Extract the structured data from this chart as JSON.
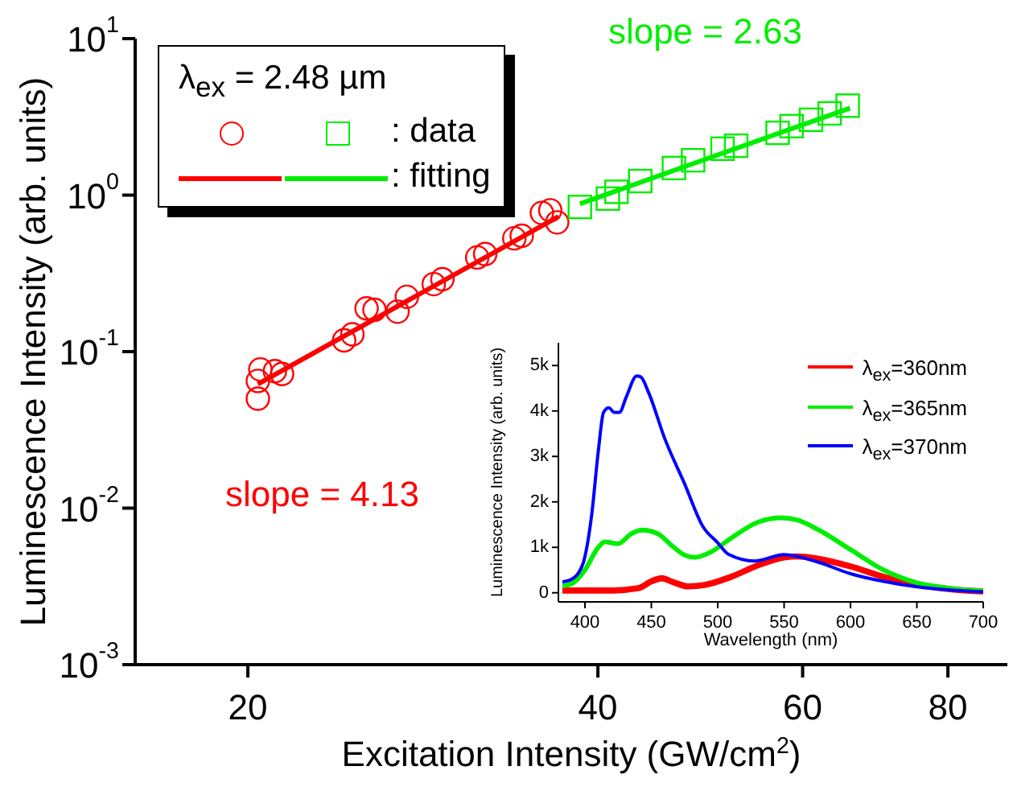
{
  "chart_data": [
    {
      "type": "scatter",
      "xlabel": "Excitation Intensity (GW/cm$^{2}$)",
      "ylabel": "Luminescence Intensity (arb. units)",
      "log": "xy",
      "xlim": [
        16,
        90
      ],
      "xticks": [
        20,
        40,
        60,
        80
      ],
      "ylim": [
        0.001,
        10
      ],
      "yticks": [
        {
          "value": 0.001,
          "label": "10$^{-3}$"
        },
        {
          "value": 0.01,
          "label": "10$^{-2}$"
        },
        {
          "value": 0.1,
          "label": "10$^{-1}$"
        },
        {
          "value": 1,
          "label": "10$^{0}$"
        },
        {
          "value": 10,
          "label": "10$^{1}$"
        }
      ],
      "legend": "top left",
      "legend_title": "λ$_{ex}$ = 2.48 µm",
      "grid": false,
      "series": [
        {
          "type": "scatter",
          "marker": "circle",
          "color": "#ff0000",
          "x": [
            20.4,
            20.4,
            20.5,
            21.1,
            21.4,
            24.2,
            24.6,
            25.3,
            25.7,
            26.9,
            27.4,
            28.9,
            29.4,
            31.5,
            32.0,
            33.9,
            34.4,
            35.8,
            36.4,
            36.9
          ],
          "values": [
            0.065,
            0.05,
            0.077,
            0.075,
            0.072,
            0.118,
            0.129,
            0.189,
            0.185,
            0.18,
            0.224,
            0.27,
            0.29,
            0.4,
            0.42,
            0.53,
            0.55,
            0.77,
            0.8,
            0.67
          ]
        },
        {
          "type": "scatter",
          "marker": "square",
          "color": "#00ee00",
          "name": ": data",
          "x": [
            38.6,
            40.8,
            41.5,
            43.5,
            46.5,
            48.3,
            51.2,
            52.6,
            57.1,
            58.7,
            61.0,
            63.3,
            65.6
          ],
          "values": [
            0.84,
            0.95,
            1.05,
            1.23,
            1.49,
            1.67,
            1.98,
            2.07,
            2.5,
            2.76,
            3.03,
            3.33,
            3.73
          ]
        },
        {
          "type": "line",
          "marker": "none",
          "color": "#ff0000",
          "x": [
            20.4,
            37
          ],
          "values": [
            0.062,
            0.73
          ]
        },
        {
          "type": "line",
          "marker": "none",
          "color": "#00ee00",
          "name": ": fitting",
          "x": [
            38.6,
            65.9
          ],
          "values": [
            0.88,
            3.6
          ]
        }
      ],
      "annotations": [
        "slope = 4.13",
        "slope = 2.63"
      ]
    },
    {
      "type": "line",
      "xlabel": "Wavelength (nm)",
      "ylabel": "Luminescence Intensity (arb. units)",
      "xlim": [
        380,
        700
      ],
      "xticks": [
        400,
        450,
        500,
        550,
        600,
        650,
        700
      ],
      "ylim": [
        -200,
        5500
      ],
      "yticks": [
        0,
        {
          "value": 1000,
          "label": "1k"
        },
        {
          "value": 2000,
          "label": "2k"
        },
        {
          "value": 3000,
          "label": "3k"
        },
        {
          "value": 4000,
          "label": "4k"
        },
        {
          "value": 5000,
          "label": "5k"
        }
      ],
      "legend": "top right",
      "grid": false,
      "marker": "none",
      "series": [
        {
          "name": "λ$_{ex}$=360nm",
          "color": "#ff0000",
          "x": [
            383,
            420,
            440,
            450,
            458,
            465,
            478,
            490,
            510,
            530,
            550,
            560,
            575,
            600,
            625,
            650,
            675,
            700
          ],
          "values": [
            50,
            50,
            100,
            250,
            320,
            250,
            140,
            170,
            350,
            600,
            780,
            800,
            750,
            580,
            350,
            180,
            80,
            30
          ]
        },
        {
          "name": "λ$_{ex}$=365nm",
          "color": "#00ee00",
          "x": [
            383,
            390,
            400,
            410,
            415,
            420,
            425,
            435,
            443,
            455,
            465,
            475,
            483,
            495,
            510,
            530,
            548,
            560,
            575,
            600,
            625,
            650,
            675,
            700
          ],
          "values": [
            150,
            200,
            500,
            1000,
            1120,
            1100,
            1080,
            1300,
            1380,
            1300,
            1050,
            830,
            780,
            900,
            1200,
            1550,
            1650,
            1600,
            1400,
            950,
            500,
            220,
            100,
            40
          ]
        },
        {
          "name": "λ$_{ex}$=370nm",
          "color": "#0000ff",
          "x": [
            383,
            390,
            398,
            405,
            410,
            414,
            418,
            422,
            426,
            431,
            439,
            442,
            448,
            460,
            475,
            489,
            500,
            508,
            528,
            550,
            575,
            600,
            625,
            650,
            675,
            700
          ],
          "values": [
            240,
            300,
            600,
            1700,
            3100,
            3970,
            4070,
            3970,
            3970,
            4300,
            4770,
            4750,
            4400,
            3400,
            2400,
            1450,
            1100,
            850,
            700,
            840,
            680,
            420,
            250,
            130,
            60,
            20
          ]
        }
      ]
    }
  ]
}
